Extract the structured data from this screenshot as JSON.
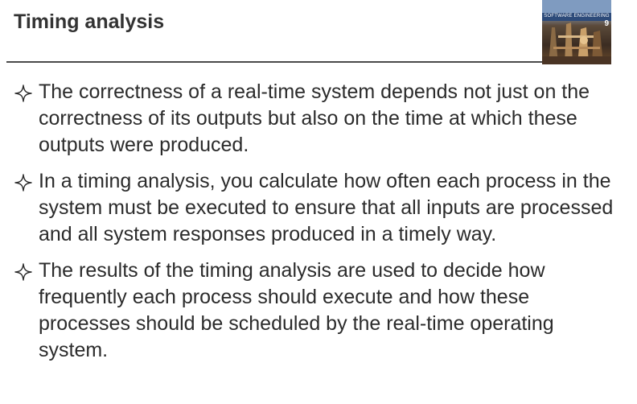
{
  "slide": {
    "title": "Timing analysis"
  },
  "book_cover": {
    "label": "SOFTWARE ENGINEERING",
    "edition": "9"
  },
  "bullets": [
    {
      "text": "The correctness of a real-time system depends not just on the correctness of its outputs but also on the time at which these outputs were produced."
    },
    {
      "text": " In a timing analysis, you calculate how often each process in the system must be executed to ensure that all inputs are processed and all system responses produced in a timely way."
    },
    {
      "text": "The results of the timing analysis are used to decide how frequently each process should execute and how these processes should be scheduled by the real-time operating system."
    }
  ],
  "icons": {
    "bullet": "four-point-star-icon",
    "cover": "book-cover-image"
  }
}
